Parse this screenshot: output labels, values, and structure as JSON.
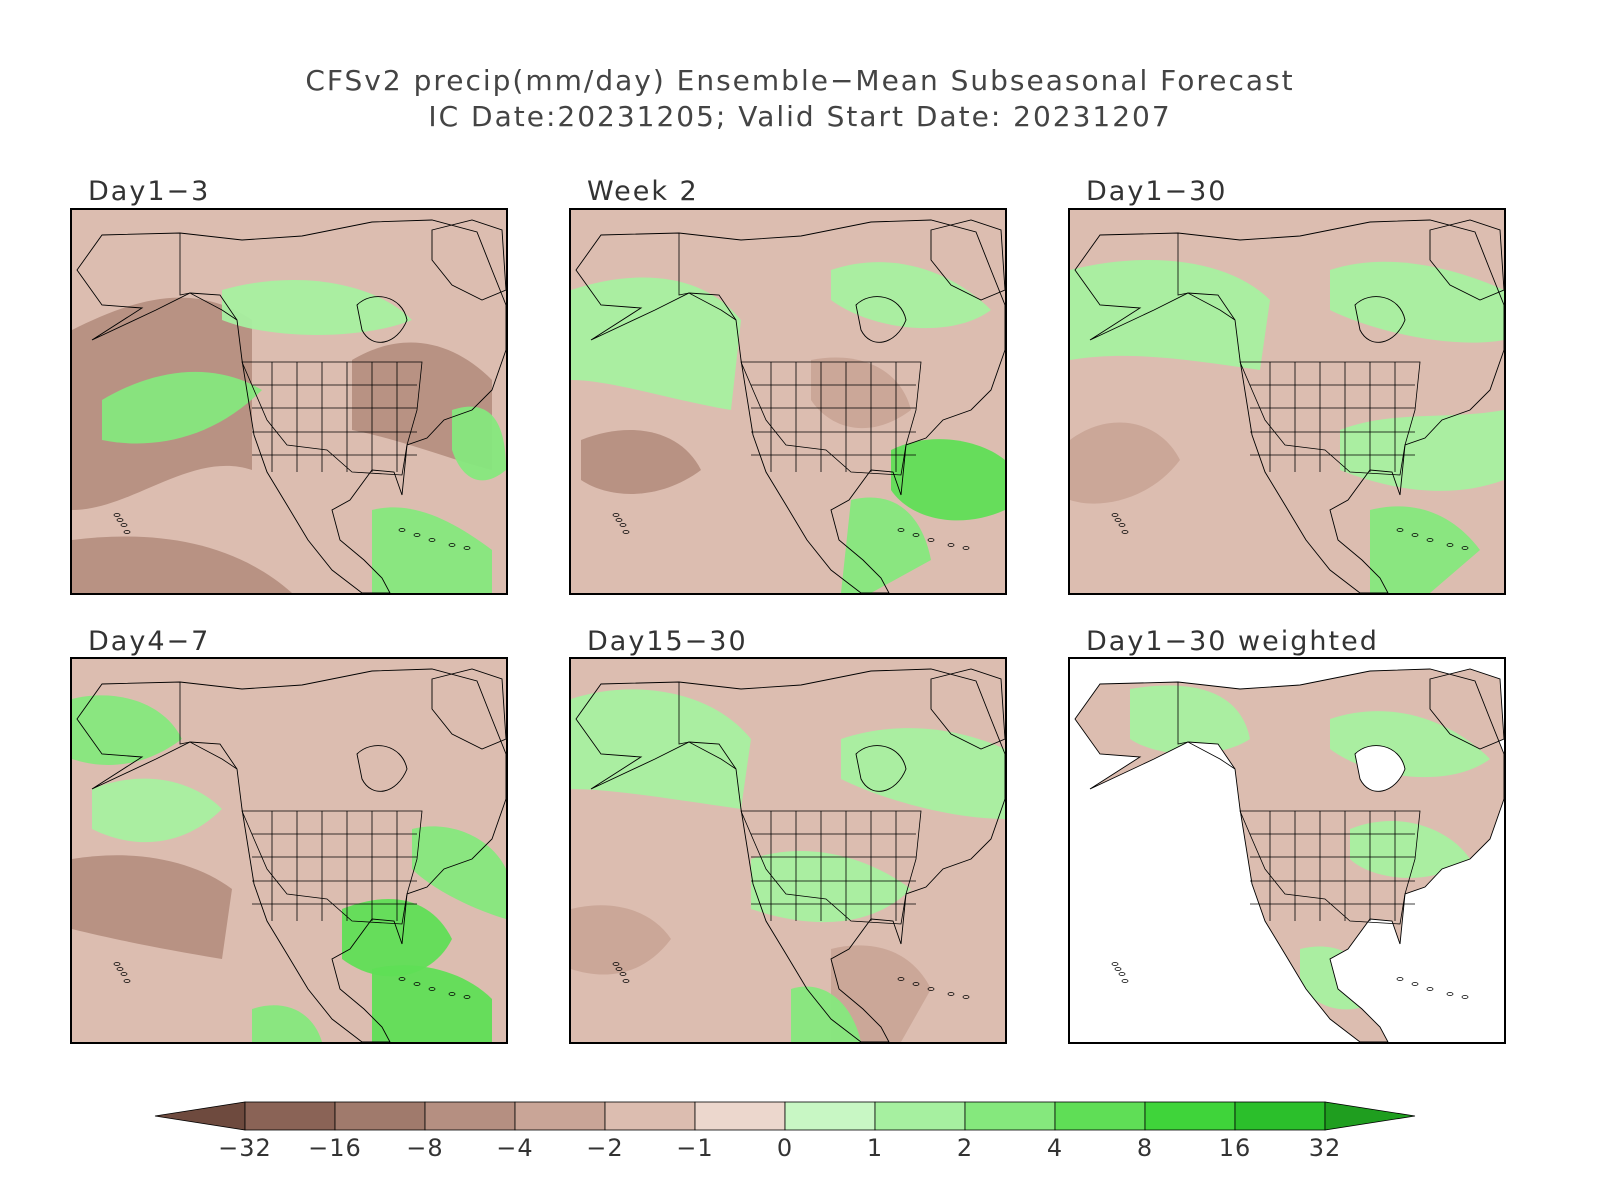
{
  "title": {
    "line1": "CFSv2 precip(mm/day) Ensemble−Mean Subseasonal Forecast",
    "line2": "IC Date:20231205; Valid Start Date: 20231207"
  },
  "panels": [
    {
      "id": "day1-3",
      "label": "Day1−3",
      "masked": false
    },
    {
      "id": "week2",
      "label": "Week 2",
      "masked": false
    },
    {
      "id": "day1-30",
      "label": "Day1−30",
      "masked": false
    },
    {
      "id": "day4-7",
      "label": "Day4−7",
      "masked": false
    },
    {
      "id": "day15-30",
      "label": "Day15−30",
      "masked": false
    },
    {
      "id": "day1-30-weighted",
      "label": "Day1−30 weighted",
      "masked": true
    }
  ],
  "colorbar": {
    "labels": [
      "−32",
      "−16",
      "−8",
      "−4",
      "−2",
      "−1",
      "0",
      "1",
      "2",
      "4",
      "8",
      "16",
      "32"
    ],
    "colors": [
      "#6e4a3e",
      "#8a6356",
      "#a07a6c",
      "#b58f81",
      "#c9a597",
      "#dcbdb0",
      "#ecd7cd",
      "#c8f7c4",
      "#a6f0a0",
      "#85e87d",
      "#5fde56",
      "#3fd43a",
      "#2bbf2b",
      "#1f9e1f"
    ]
  }
}
